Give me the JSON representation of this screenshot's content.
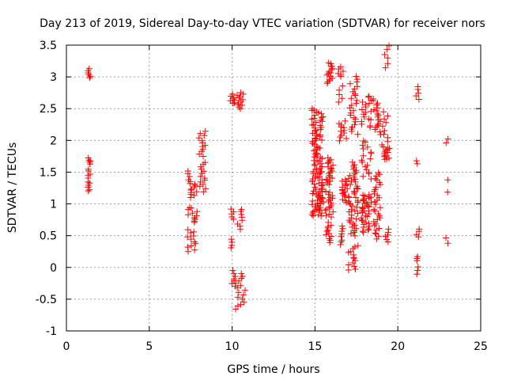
{
  "chart_data": {
    "type": "scatter",
    "title": "Day 213 of 2019, Sidereal Day-to-day VTEC variation (SDTVAR) for receiver nors",
    "xlabel": "GPS time / hours",
    "ylabel": "SDTVAR / TECUs",
    "xlim": [
      0,
      25
    ],
    "ylim": [
      -1,
      3.5
    ],
    "xticks": [
      "0",
      "5",
      "10",
      "15",
      "20",
      "25"
    ],
    "yticks": [
      "-1",
      "-0.5",
      "0",
      "0.5",
      "1",
      "1.5",
      "2",
      "2.5",
      "3",
      "3.5"
    ],
    "xtick_values": [
      0,
      5,
      10,
      15,
      20,
      25
    ],
    "ytick_values": [
      -1,
      -0.5,
      0,
      0.5,
      1,
      1.5,
      2,
      2.5,
      3,
      3.5
    ],
    "grid": true,
    "marker": "+",
    "color": "#ff0000",
    "clusters": [
      {
        "x": [
          1.3,
          1.45
        ],
        "y": [
          2.98,
          3.12
        ],
        "n": 6
      },
      {
        "x": [
          1.3,
          1.45
        ],
        "y": [
          1.62,
          1.72
        ],
        "n": 5
      },
      {
        "x": [
          1.3,
          1.45
        ],
        "y": [
          1.4,
          1.55
        ],
        "n": 5
      },
      {
        "x": [
          1.3,
          1.45
        ],
        "y": [
          1.2,
          1.35
        ],
        "n": 6
      },
      {
        "x": [
          7.2,
          7.5
        ],
        "y": [
          1.38,
          1.52
        ],
        "n": 4
      },
      {
        "x": [
          7.4,
          7.9
        ],
        "y": [
          1.1,
          1.35
        ],
        "n": 12
      },
      {
        "x": [
          7.3,
          7.9
        ],
        "y": [
          0.7,
          0.95
        ],
        "n": 12
      },
      {
        "x": [
          7.3,
          7.9
        ],
        "y": [
          0.25,
          0.6
        ],
        "n": 12
      },
      {
        "x": [
          8.0,
          8.4
        ],
        "y": [
          1.75,
          2.15
        ],
        "n": 12
      },
      {
        "x": [
          8.0,
          8.4
        ],
        "y": [
          1.2,
          1.65
        ],
        "n": 14
      },
      {
        "x": [
          9.8,
          10.2
        ],
        "y": [
          2.58,
          2.72
        ],
        "n": 8
      },
      {
        "x": [
          10.3,
          10.7
        ],
        "y": [
          2.5,
          2.75
        ],
        "n": 12
      },
      {
        "x": [
          9.9,
          10.1
        ],
        "y": [
          0.75,
          0.92
        ],
        "n": 5
      },
      {
        "x": [
          9.9,
          10.1
        ],
        "y": [
          0.3,
          0.45
        ],
        "n": 4
      },
      {
        "x": [
          10.3,
          10.6
        ],
        "y": [
          0.6,
          0.92
        ],
        "n": 8
      },
      {
        "x": [
          9.9,
          10.2
        ],
        "y": [
          -0.3,
          -0.05
        ],
        "n": 7
      },
      {
        "x": [
          10.2,
          10.8
        ],
        "y": [
          -0.65,
          -0.1
        ],
        "n": 16
      },
      {
        "x": [
          14.8,
          15.5
        ],
        "y": [
          2.0,
          2.5
        ],
        "n": 30
      },
      {
        "x": [
          14.8,
          15.5
        ],
        "y": [
          1.5,
          2.0
        ],
        "n": 30
      },
      {
        "x": [
          14.8,
          15.5
        ],
        "y": [
          1.1,
          1.5
        ],
        "n": 30
      },
      {
        "x": [
          14.8,
          15.5
        ],
        "y": [
          0.8,
          1.1
        ],
        "n": 25
      },
      {
        "x": [
          15.7,
          16.1
        ],
        "y": [
          2.9,
          3.22
        ],
        "n": 16
      },
      {
        "x": [
          15.6,
          16.1
        ],
        "y": [
          1.3,
          1.72
        ],
        "n": 20
      },
      {
        "x": [
          15.6,
          16.1
        ],
        "y": [
          0.8,
          1.2
        ],
        "n": 18
      },
      {
        "x": [
          15.6,
          16.1
        ],
        "y": [
          0.4,
          0.7
        ],
        "n": 12
      },
      {
        "x": [
          16.4,
          16.7
        ],
        "y": [
          3.0,
          3.15
        ],
        "n": 6
      },
      {
        "x": [
          16.4,
          16.7
        ],
        "y": [
          2.6,
          2.85
        ],
        "n": 5
      },
      {
        "x": [
          16.4,
          16.7
        ],
        "y": [
          0.35,
          0.65
        ],
        "n": 8
      },
      {
        "x": [
          16.4,
          17.0
        ],
        "y": [
          2.0,
          2.3
        ],
        "n": 12
      },
      {
        "x": [
          16.6,
          17.2
        ],
        "y": [
          1.0,
          1.4
        ],
        "n": 22
      },
      {
        "x": [
          17.0,
          17.6
        ],
        "y": [
          2.1,
          3.0
        ],
        "n": 25
      },
      {
        "x": [
          17.0,
          17.6
        ],
        "y": [
          1.1,
          1.65
        ],
        "n": 22
      },
      {
        "x": [
          17.0,
          17.6
        ],
        "y": [
          0.5,
          1.05
        ],
        "n": 22
      },
      {
        "x": [
          17.0,
          17.6
        ],
        "y": [
          -0.05,
          0.35
        ],
        "n": 14
      },
      {
        "x": [
          17.8,
          18.4
        ],
        "y": [
          2.2,
          2.7
        ],
        "n": 18
      },
      {
        "x": [
          17.8,
          18.4
        ],
        "y": [
          1.4,
          2.0
        ],
        "n": 18
      },
      {
        "x": [
          17.8,
          18.4
        ],
        "y": [
          0.9,
          1.15
        ],
        "n": 20
      },
      {
        "x": [
          17.8,
          18.4
        ],
        "y": [
          0.55,
          0.9
        ],
        "n": 18
      },
      {
        "x": [
          18.5,
          19.0
        ],
        "y": [
          2.1,
          2.65
        ],
        "n": 18
      },
      {
        "x": [
          18.5,
          19.0
        ],
        "y": [
          1.0,
          1.5
        ],
        "n": 16
      },
      {
        "x": [
          18.5,
          19.0
        ],
        "y": [
          0.45,
          0.95
        ],
        "n": 16
      },
      {
        "x": [
          19.0,
          19.4
        ],
        "y": [
          1.7,
          2.45
        ],
        "n": 14
      },
      {
        "x": [
          19.2,
          19.5
        ],
        "y": [
          3.15,
          3.5
        ],
        "n": 6
      },
      {
        "x": [
          19.1,
          19.5
        ],
        "y": [
          1.7,
          1.9
        ],
        "n": 10
      },
      {
        "x": [
          19.1,
          19.5
        ],
        "y": [
          0.4,
          0.6
        ],
        "n": 6
      },
      {
        "x": [
          21.1,
          21.3
        ],
        "y": [
          2.65,
          2.85
        ],
        "n": 5
      },
      {
        "x": [
          21.1,
          21.3
        ],
        "y": [
          1.63,
          1.68
        ],
        "n": 2
      },
      {
        "x": [
          21.1,
          21.3
        ],
        "y": [
          0.48,
          0.6
        ],
        "n": 4
      },
      {
        "x": [
          21.1,
          21.3
        ],
        "y": [
          0.1,
          0.18
        ],
        "n": 3
      },
      {
        "x": [
          21.1,
          21.3
        ],
        "y": [
          -0.1,
          0.0
        ],
        "n": 3
      },
      {
        "x": [
          22.85,
          23.05
        ],
        "y": [
          1.95,
          2.02
        ],
        "n": 2
      },
      {
        "x": [
          22.85,
          23.05
        ],
        "y": [
          1.18,
          1.38
        ],
        "n": 2
      },
      {
        "x": [
          22.85,
          23.05
        ],
        "y": [
          0.38,
          0.46
        ],
        "n": 2
      }
    ]
  }
}
